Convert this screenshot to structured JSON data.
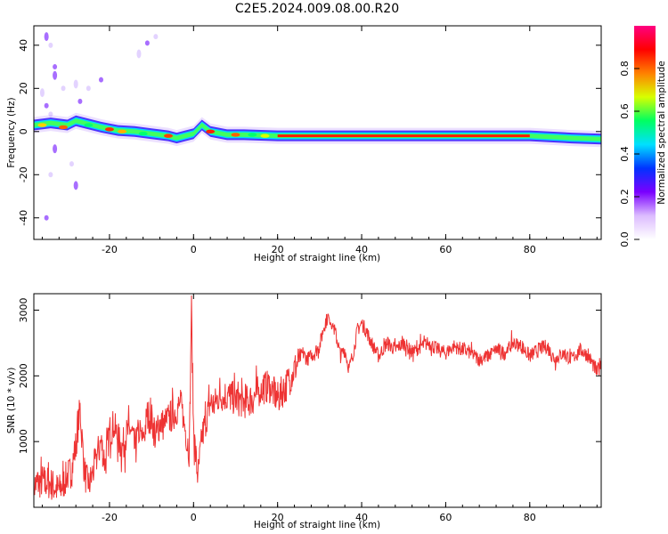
{
  "figure": {
    "title": "C2E5.2024.009.08.00.R20"
  },
  "chart_data": [
    {
      "type": "heatmap",
      "name": "spectrogram",
      "xlabel": "Height of straight line (km)",
      "ylabel": "Frequency (Hz)",
      "xlim": [
        -38,
        97
      ],
      "ylim": [
        -50,
        49
      ],
      "xticks": [
        -20,
        0,
        20,
        40,
        60,
        80
      ],
      "yticks": [
        -40,
        -20,
        0,
        20,
        40
      ],
      "grid": false,
      "colorbar": {
        "label": "Normalized spectral amplitude",
        "range": [
          0,
          1
        ],
        "ticks": [
          "0.0",
          "0.2",
          "0.4",
          "0.6",
          "0.8"
        ],
        "colors": [
          "#ffffff",
          "#dcbcff",
          "#7a00ff",
          "#0033ff",
          "#00e0ff",
          "#00ff60",
          "#d8ff00",
          "#ff8000",
          "#ff0000",
          "#ff0080"
        ]
      },
      "ridge": {
        "x": [
          -38,
          -34,
          -30,
          -28,
          -26,
          -22,
          -18,
          -14,
          -10,
          -6,
          -4,
          -2,
          0,
          2,
          4,
          8,
          12,
          20,
          30,
          40,
          60,
          80,
          90,
          97
        ],
        "y": [
          3,
          4,
          3,
          5,
          4,
          2,
          0.5,
          0,
          -1,
          -2,
          -3,
          -2,
          -1,
          3,
          0,
          -1.5,
          -1.5,
          -2,
          -2,
          -2,
          -2,
          -2,
          -3,
          -3.5
        ]
      },
      "peak_amplitude": 1.0
    },
    {
      "type": "line",
      "name": "snr",
      "xlabel": "Height of straight line (km)",
      "ylabel": "SNR (10 * v/v)",
      "xlim": [
        -38,
        97
      ],
      "ylim": [
        0,
        3250
      ],
      "xticks": [
        -20,
        0,
        20,
        40,
        60,
        80
      ],
      "yticks": [
        1000,
        2000,
        3000
      ],
      "grid": false,
      "line_color": "#ee3333",
      "x": [
        -38,
        -36,
        -34,
        -32,
        -30,
        -29,
        -28,
        -27,
        -26,
        -25,
        -24,
        -23,
        -22,
        -21,
        -20,
        -19,
        -18,
        -17,
        -16,
        -15,
        -14,
        -13,
        -12,
        -11,
        -10,
        -9,
        -8,
        -7,
        -6,
        -5,
        -4,
        -3,
        -2,
        -1,
        -0.5,
        0,
        0.5,
        1,
        2,
        3,
        4,
        5,
        6,
        8,
        10,
        12,
        14,
        16,
        18,
        20,
        22,
        24,
        26,
        27,
        28,
        30,
        31,
        32,
        33,
        34,
        35,
        36,
        37,
        38,
        39,
        40,
        41,
        42,
        44,
        46,
        48,
        50,
        52,
        54,
        56,
        58,
        60,
        62,
        64,
        66,
        68,
        70,
        72,
        74,
        76,
        78,
        80,
        82,
        84,
        86,
        88,
        90,
        92,
        94,
        96,
        97
      ],
      "y": [
        330,
        400,
        360,
        250,
        480,
        560,
        950,
        1500,
        550,
        300,
        520,
        780,
        1000,
        650,
        1150,
        1250,
        1050,
        900,
        1100,
        1200,
        900,
        1150,
        1000,
        1400,
        1350,
        1050,
        1300,
        1250,
        1350,
        1400,
        1500,
        1550,
        1200,
        850,
        3050,
        1200,
        800,
        450,
        1050,
        1350,
        1600,
        1550,
        1700,
        1700,
        1650,
        1600,
        1650,
        1800,
        1850,
        1650,
        1850,
        2100,
        2350,
        2250,
        2300,
        2450,
        2750,
        2900,
        2800,
        2600,
        2300,
        2400,
        2100,
        2350,
        2700,
        2800,
        2700,
        2550,
        2300,
        2500,
        2400,
        2500,
        2350,
        2450,
        2500,
        2400,
        2350,
        2450,
        2400,
        2350,
        2250,
        2300,
        2400,
        2350,
        2500,
        2450,
        2300,
        2400,
        2450,
        2250,
        2350,
        2250,
        2400,
        2300,
        2050,
        2250
      ]
    }
  ]
}
